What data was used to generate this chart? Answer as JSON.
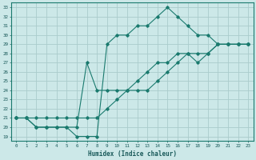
{
  "xlabel": "Humidex (Indice chaleur)",
  "bg_color": "#cce8e8",
  "grid_color": "#aacccc",
  "line_color": "#1a7a6e",
  "xlim": [
    -0.5,
    23.5
  ],
  "ylim": [
    18.5,
    33.5
  ],
  "xticks": [
    0,
    1,
    2,
    3,
    4,
    5,
    6,
    7,
    8,
    9,
    10,
    11,
    12,
    13,
    14,
    15,
    16,
    17,
    18,
    19,
    20,
    21,
    22,
    23
  ],
  "yticks": [
    19,
    20,
    21,
    22,
    23,
    24,
    25,
    26,
    27,
    28,
    29,
    30,
    31,
    32,
    33
  ],
  "line1_x": [
    0,
    1,
    2,
    3,
    4,
    5,
    6,
    7,
    8,
    9,
    10,
    11,
    12,
    13,
    14,
    15,
    16,
    17,
    18,
    19,
    20,
    21,
    22,
    23
  ],
  "line1_y": [
    21,
    21,
    20,
    20,
    20,
    20,
    19,
    19,
    19,
    29,
    30,
    30,
    31,
    31,
    32,
    33,
    32,
    31,
    30,
    30,
    29,
    29,
    29,
    29
  ],
  "line2_x": [
    0,
    1,
    2,
    3,
    4,
    5,
    6,
    7,
    8,
    9,
    10,
    11,
    12,
    13,
    14,
    15,
    16,
    17,
    18,
    19,
    20,
    21,
    22,
    23
  ],
  "line2_y": [
    21,
    21,
    20,
    20,
    20,
    20,
    20,
    27,
    24,
    24,
    24,
    24,
    24,
    24,
    25,
    26,
    27,
    28,
    27,
    28,
    29,
    29,
    29,
    29
  ],
  "line3_x": [
    0,
    1,
    2,
    3,
    4,
    5,
    6,
    7,
    8,
    9,
    10,
    11,
    12,
    13,
    14,
    15,
    16,
    17,
    18,
    19,
    20,
    21,
    22,
    23
  ],
  "line3_y": [
    21,
    21,
    21,
    21,
    21,
    21,
    21,
    21,
    21,
    22,
    23,
    24,
    25,
    26,
    27,
    27,
    28,
    28,
    28,
    28,
    29,
    29,
    29,
    29
  ]
}
